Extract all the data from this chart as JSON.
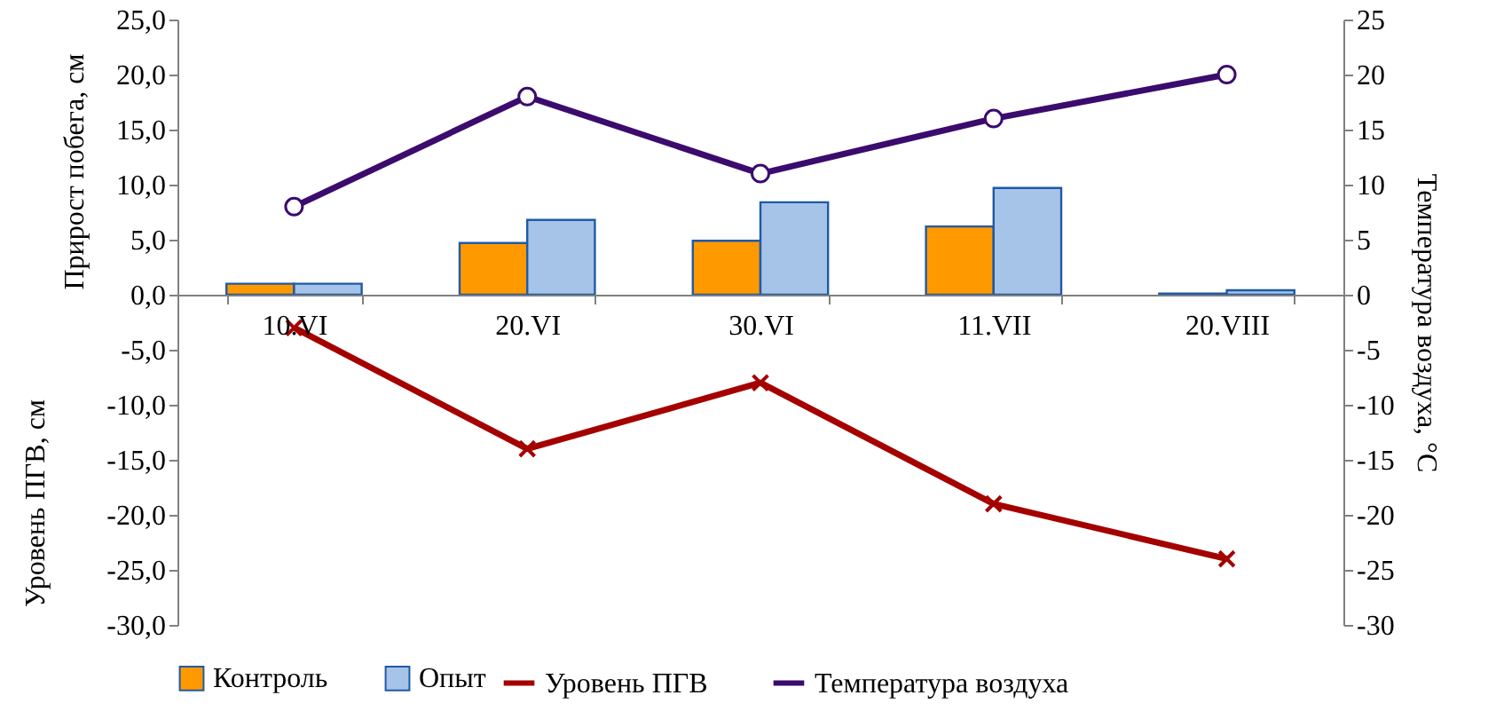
{
  "chart_data": {
    "type": "bar",
    "ylabel": "Прирост  побега, см",
    "y2label": "Температура воздуха, °С",
    "annotations": [
      "Уровень ПГВ, см"
    ],
    "categories": [
      "10.VI",
      "20.VI",
      "30.VI",
      "11.VII",
      "20.VIII"
    ],
    "series": [
      {
        "name": "Контроль",
        "color": "#ff9900",
        "values": [
          1.0,
          4.7,
          4.9,
          6.2,
          0.1
        ]
      },
      {
        "name": "Опыт",
        "color": "#a6c4e8",
        "values": [
          1.0,
          6.8,
          8.4,
          9.7,
          0.4
        ]
      },
      {
        "name": "Уровень ПГВ",
        "type": "line",
        "color": "#a50000",
        "marker": "cross",
        "values": [
          -3,
          -14,
          -8,
          -19,
          -24
        ]
      },
      {
        "name": "Температура воздуха",
        "type": "line",
        "axis": "y2",
        "color": "#3b0b6e",
        "marker": "circle",
        "values": [
          8,
          18,
          11,
          16,
          20
        ]
      }
    ],
    "ylim": [
      -30,
      25
    ],
    "yticks": [
      {
        "value": -30,
        "label": "-30,0"
      },
      {
        "value": -25,
        "label": "-25,0"
      },
      {
        "value": -20,
        "label": "-20,0"
      },
      {
        "value": -15,
        "label": "-15,0"
      },
      {
        "value": -10,
        "label": "-10,0"
      },
      {
        "value": -5,
        "label": "-5,0"
      },
      {
        "value": 0,
        "label": "0,0"
      },
      {
        "value": 5,
        "label": "5,0"
      },
      {
        "value": 10,
        "label": "10,0"
      },
      {
        "value": 15,
        "label": "15,0"
      },
      {
        "value": 20,
        "label": "20,0"
      },
      {
        "value": 25,
        "label": "25,0"
      }
    ],
    "y2lim": [
      -30,
      25
    ],
    "y2ticks": [
      -30,
      -25,
      -20,
      -15,
      -10,
      -5,
      0,
      5,
      10,
      15,
      20,
      25
    ],
    "grid": false,
    "legend": "bottom"
  }
}
